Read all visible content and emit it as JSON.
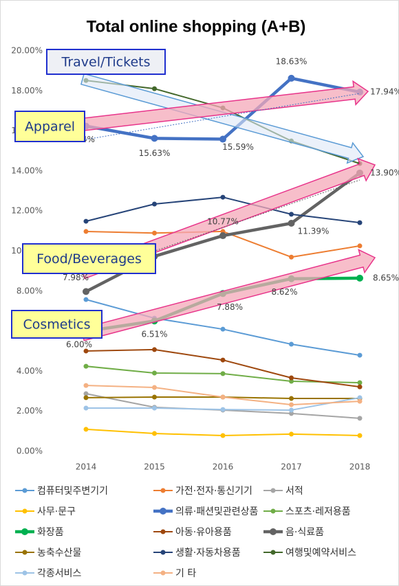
{
  "chart_data": {
    "type": "line",
    "title": "Total online shopping (A+B)",
    "categories": [
      "2014",
      "2015",
      "2016",
      "2017",
      "2018"
    ],
    "ylim": [
      0,
      20
    ],
    "yticks": [
      {
        "value": 0,
        "label": "0.00%"
      },
      {
        "value": 2,
        "label": "2.00%"
      },
      {
        "value": 4,
        "label": "4.00%"
      },
      {
        "value": 6,
        "label": "6.00%"
      },
      {
        "value": 8,
        "label": "8.00%"
      },
      {
        "value": 10,
        "label": "10.00%"
      },
      {
        "value": 12,
        "label": "12.00%"
      },
      {
        "value": 14,
        "label": "14.00%"
      },
      {
        "value": 16,
        "label": "16.00%"
      },
      {
        "value": 18,
        "label": "18.00%"
      },
      {
        "value": 20,
        "label": "20.00%"
      }
    ],
    "grid": false,
    "legend": "bottom",
    "series": [
      {
        "name": "컴퓨터및주변기기",
        "color": "#5b9bd5",
        "values": [
          7.58,
          6.65,
          6.1,
          5.35,
          4.8
        ]
      },
      {
        "name": "가전·전자·통신기기",
        "color": "#ed7d31",
        "values": [
          10.98,
          10.9,
          10.98,
          9.7,
          10.26
        ]
      },
      {
        "name": "서적",
        "color": "#a5a5a5",
        "values": [
          2.88,
          2.2,
          2.06,
          1.89,
          1.65
        ]
      },
      {
        "name": "사무·문구",
        "color": "#ffc000",
        "values": [
          1.1,
          0.89,
          0.79,
          0.86,
          0.79
        ]
      },
      {
        "name": "의류·패션및관련상품",
        "color": "#4472c4",
        "values": [
          16.24,
          15.63,
          15.59,
          18.63,
          17.94
        ],
        "value_labels": [
          "16.24%",
          "15.63%",
          "15.59%",
          "18.63%",
          "17.94%"
        ]
      },
      {
        "name": "스포츠·레저용품",
        "color": "#70ad47",
        "values": [
          4.25,
          3.91,
          3.88,
          3.5,
          3.43
        ]
      },
      {
        "name": "화장품",
        "color": "#00b050",
        "values": [
          6.0,
          6.51,
          7.88,
          8.62,
          8.65
        ],
        "value_labels": [
          "6.00%",
          "6.51%",
          "7.88%",
          "8.62%",
          "8.65%"
        ]
      },
      {
        "name": "아동·유아용품",
        "color": "#9e480e",
        "values": [
          5.01,
          5.08,
          4.56,
          3.67,
          3.22
        ]
      },
      {
        "name": "음·식료품",
        "color": "#636363",
        "values": [
          7.98,
          9.74,
          10.77,
          11.39,
          13.9
        ],
        "value_labels": [
          "7.98%",
          null,
          "10.77%",
          "11.39%",
          "13.90%"
        ]
      },
      {
        "name": "농축수산물",
        "color": "#997300",
        "values": [
          2.68,
          2.71,
          2.71,
          2.64,
          2.64
        ]
      },
      {
        "name": "생활·자동차용품",
        "color": "#264478",
        "values": [
          11.49,
          12.35,
          12.69,
          11.84,
          11.42
        ]
      },
      {
        "name": "여행및예약서비스",
        "color": "#43682b",
        "values": [
          18.52,
          18.11,
          17.15,
          15.5,
          14.37
        ]
      },
      {
        "name": "각종서비스",
        "color": "#9dc3e6",
        "values": [
          2.16,
          2.16,
          2.09,
          2.06,
          2.68
        ]
      },
      {
        "name": "기 타",
        "color": "#f4b183",
        "values": [
          3.29,
          3.19,
          2.71,
          2.33,
          2.5
        ]
      }
    ],
    "annotations": [
      "Travel/Tickets",
      "Apparel",
      "Food/Beverages",
      "Cosmetics"
    ]
  }
}
